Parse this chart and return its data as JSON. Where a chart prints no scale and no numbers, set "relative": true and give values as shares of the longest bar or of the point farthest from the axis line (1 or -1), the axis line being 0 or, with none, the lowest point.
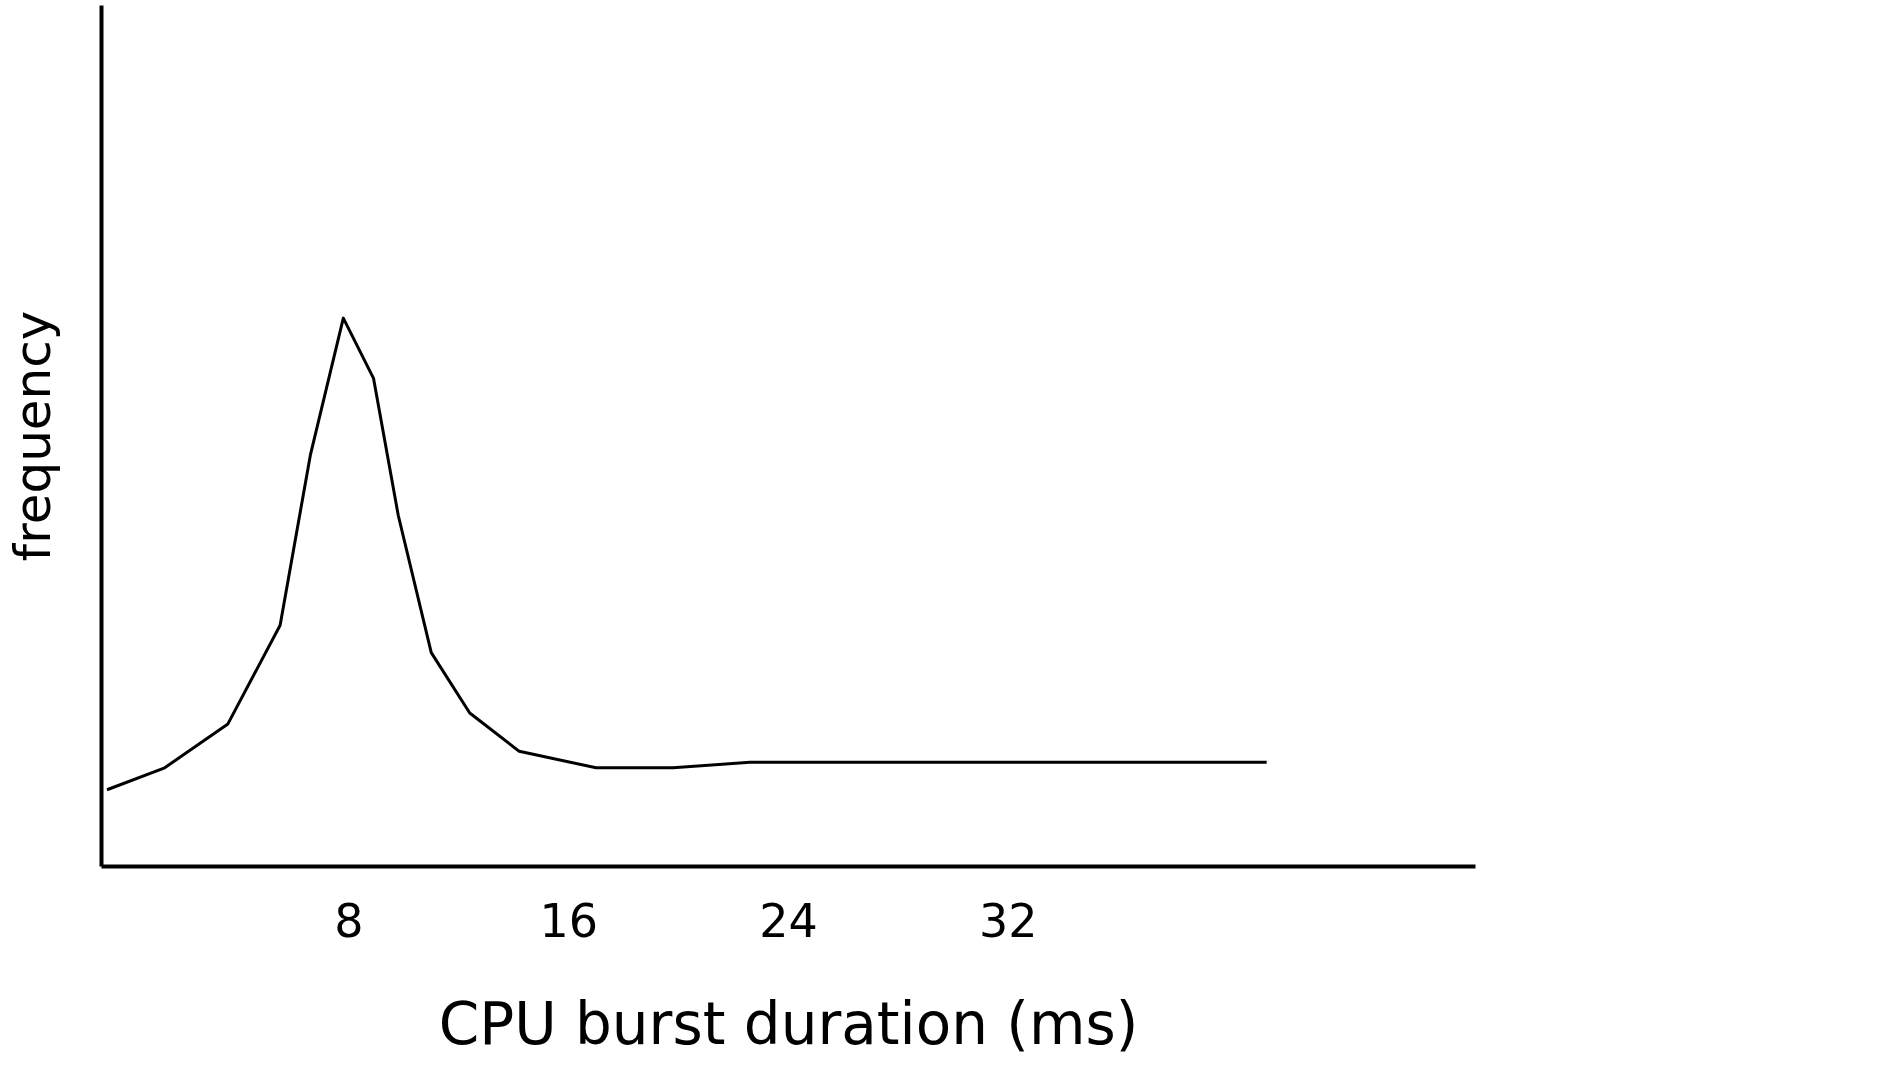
{
  "chart_data": {
    "type": "line",
    "xlabel": "CPU burst duration (ms)",
    "ylabel": "frequency",
    "relative": true,
    "color": "#000000",
    "grid": false,
    "x": [
      -0.8,
      1.3,
      3.6,
      5.5,
      6.6,
      7.8,
      8.9,
      9.8,
      11.0,
      12.4,
      14.2,
      17.0,
      19.8,
      22.6,
      25.3,
      29.1,
      33.7,
      41.4
    ],
    "values": [
      0.14,
      0.18,
      0.26,
      0.44,
      0.75,
      1.0,
      0.89,
      0.64,
      0.39,
      0.28,
      0.21,
      0.18,
      0.18,
      0.19,
      0.19,
      0.19,
      0.19,
      0.19
    ],
    "xlim": [
      -1,
      49
    ],
    "xticks": [
      8,
      16,
      24,
      32
    ]
  }
}
